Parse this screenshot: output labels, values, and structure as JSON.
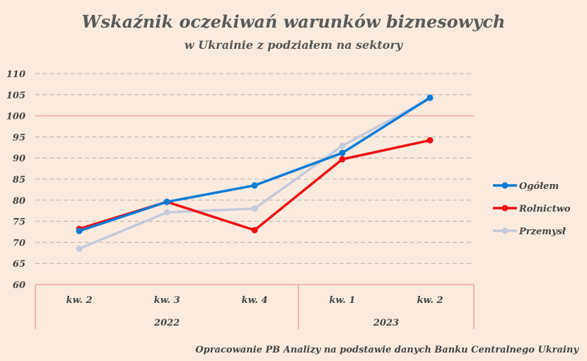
{
  "chart_data": {
    "type": "line",
    "title": "Wskaźnik oczekiwań warunków biznesowych",
    "subtitle": "w Ukrainie z podziałem na sektory",
    "categories": [
      "kw. 2",
      "kw. 3",
      "kw. 4",
      "kw. 1",
      "kw. 2"
    ],
    "groups": [
      {
        "label": "2022",
        "count": 3
      },
      {
        "label": "2023",
        "count": 2
      }
    ],
    "yticks": [
      60,
      65,
      70,
      75,
      80,
      85,
      90,
      95,
      100,
      105,
      110
    ],
    "ylim": [
      60,
      110
    ],
    "reference_line": 100,
    "legend_position": "right",
    "series": [
      {
        "name": "Ogółem",
        "color": "#0a7bd6",
        "values": [
          72.7,
          79.6,
          83.5,
          91.2,
          104.3
        ]
      },
      {
        "name": "Rolnictwo",
        "color": "#f20d12",
        "values": [
          73.2,
          79.6,
          72.9,
          89.7,
          94.2
        ]
      },
      {
        "name": "Przemysł",
        "color": "#c4c9dc",
        "values": [
          68.5,
          77.1,
          78.0,
          92.9,
          104.1
        ]
      }
    ],
    "source": "Opracowanie PB Analizy na podstawie danych Banku Centralnego Ukrainy"
  }
}
